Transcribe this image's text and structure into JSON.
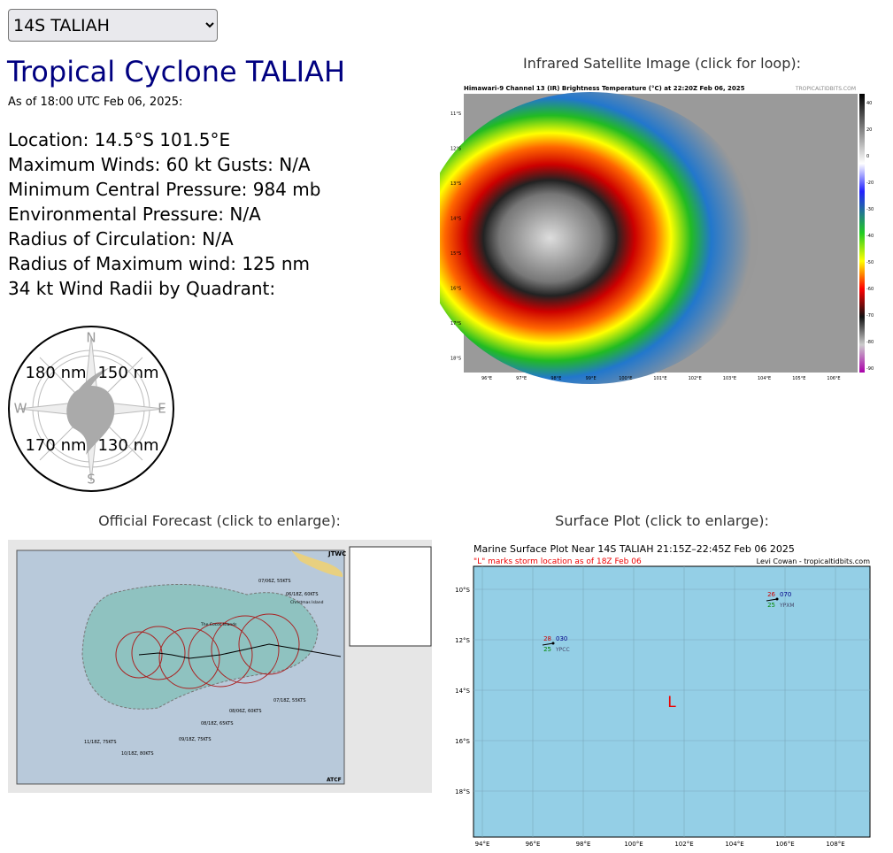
{
  "storm_select": {
    "selected": "14S TALIAH"
  },
  "header": {
    "title": "Tropical Cyclone TALIAH",
    "as_of": "As of 18:00 UTC Feb 06, 2025:"
  },
  "info": [
    "Location: 14.5°S 101.5°E",
    "Maximum Winds: 60 kt  Gusts: N/A",
    "Minimum Central Pressure: 984 mb",
    "Environmental Pressure: N/A",
    "Radius of Circulation: N/A",
    "Radius of Maximum wind: 125 nm",
    "34 kt Wind Radii by Quadrant:"
  ],
  "wind_radii": {
    "compass": [
      "N",
      "E",
      "S",
      "W"
    ],
    "nw": "180 nm",
    "ne": "150 nm",
    "sw": "170 nm",
    "se": "130 nm"
  },
  "satellite": {
    "caption": "Infrared Satellite Image (click for loop):",
    "header": "Himawari-9 Channel 13 (IR) Brightness Temperature (°C) at 22:20Z Feb 06, 2025",
    "credit": "TROPICALTIDBITS.COM",
    "lat_labels": [
      "11°S",
      "12°S",
      "13°S",
      "14°S",
      "15°S",
      "16°S",
      "17°S",
      "18°S"
    ],
    "lon_labels": [
      "96°E",
      "97°E",
      "98°E",
      "99°E",
      "100°E",
      "101°E",
      "102°E",
      "103°E",
      "104°E",
      "105°E",
      "106°E"
    ],
    "colorbar_labels": [
      "40",
      "20",
      "0",
      "-20",
      "-30",
      "-40",
      "-50",
      "-60",
      "-70",
      "-80",
      "-90"
    ]
  },
  "forecast": {
    "caption": "Official Forecast (click to enlarge):",
    "agency": "JTWC",
    "footer": "ATCF",
    "points": [
      "07/06Z, 55KTS",
      "06/18Z, 60KTS",
      "07/18Z, 55KTS",
      "08/06Z, 60KTS",
      "08/18Z, 65KTS",
      "09/18Z, 75KTS",
      "10/18Z, 80KTS",
      "11/18Z, 75KTS"
    ],
    "places": [
      "Christmas Island",
      "The Cocos Islands"
    ]
  },
  "surface": {
    "caption": "Surface Plot (click to enlarge):",
    "title": "Marine Surface Plot Near 14S TALIAH 21:15Z–22:45Z Feb 06 2025",
    "note": "\"L\" marks storm location as of 18Z Feb 06",
    "credit": "Levi Cowan - tropicaltidbits.com",
    "lat_labels": [
      "10°S",
      "12°S",
      "14°S",
      "16°S",
      "18°S"
    ],
    "lon_labels": [
      "94°E",
      "96°E",
      "98°E",
      "100°E",
      "102°E",
      "104°E",
      "106°E",
      "108°E"
    ],
    "storm_marker": "L",
    "stations": [
      {
        "temp": "28",
        "pressure": "030",
        "dew": "25",
        "id": "YPCC"
      },
      {
        "temp": "26",
        "pressure": "070",
        "dew": "25",
        "id": "YPXM"
      }
    ]
  }
}
